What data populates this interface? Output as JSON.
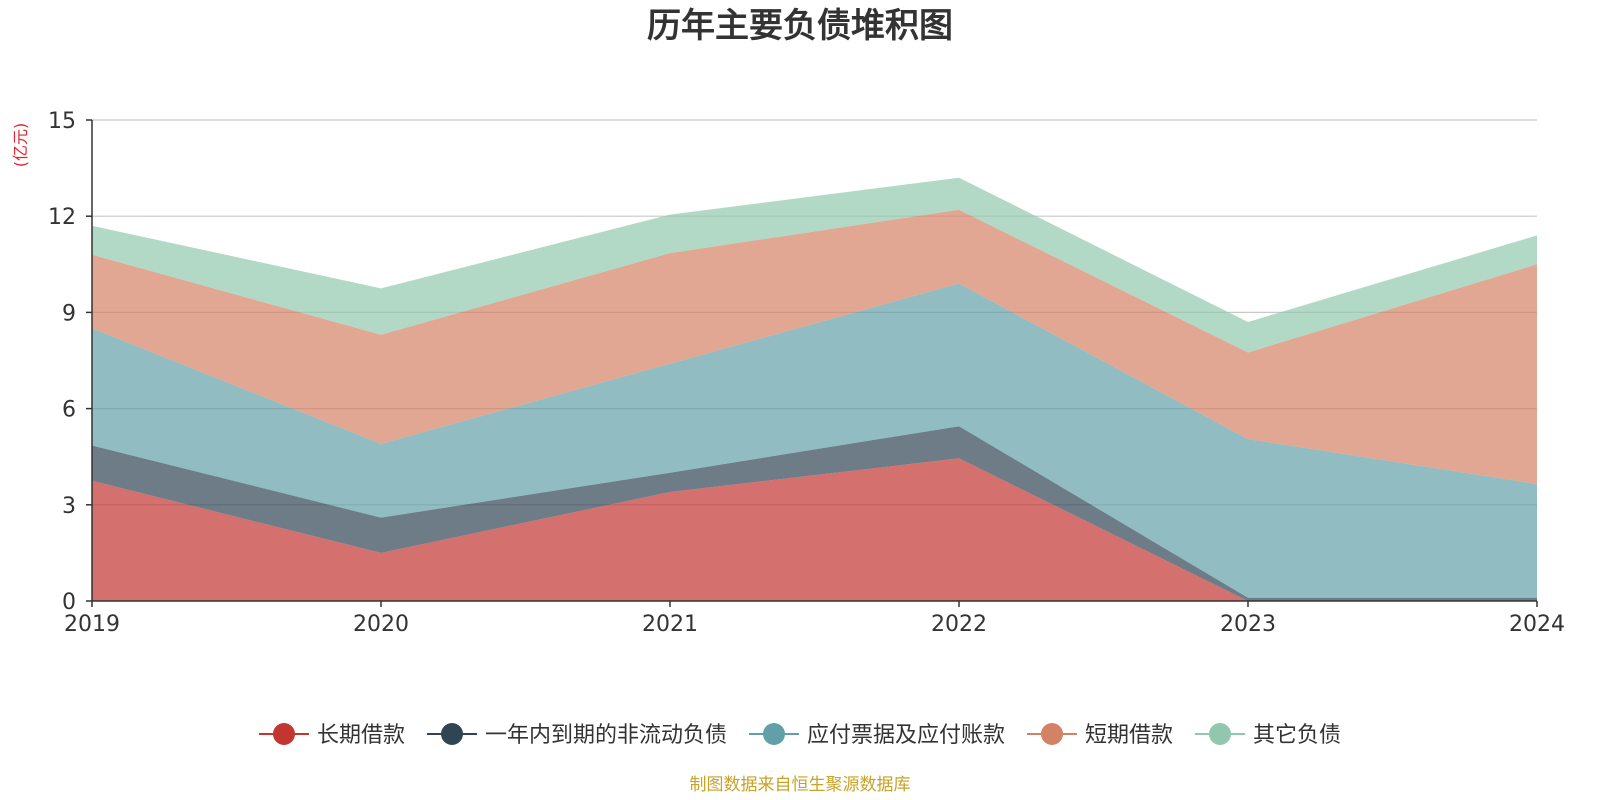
{
  "chart_data": {
    "type": "area",
    "stacked": true,
    "title": "历年主要负债堆积图",
    "y_unit": "(亿元)",
    "x": [
      "2019",
      "2020",
      "2021",
      "2022",
      "2023",
      "2024"
    ],
    "ylim": [
      0,
      15
    ],
    "yticks": [
      0,
      3,
      6,
      9,
      12,
      15
    ],
    "grid": true,
    "legend_position": "bottom",
    "series": [
      {
        "name": "长期借款",
        "color": "#c23531",
        "values": [
          3.75,
          1.5,
          3.4,
          4.45,
          0.0,
          0.0
        ]
      },
      {
        "name": "一年内到期的非流动负债",
        "color": "#2f4554",
        "values": [
          1.1,
          1.1,
          0.6,
          1.0,
          0.1,
          0.1
        ]
      },
      {
        "name": "应付票据及应付账款",
        "color": "#61a0a8",
        "values": [
          3.65,
          2.3,
          3.4,
          4.45,
          4.95,
          3.55
        ]
      },
      {
        "name": "短期借款",
        "color": "#d48265",
        "values": [
          2.3,
          3.4,
          3.45,
          2.3,
          2.7,
          6.85
        ]
      },
      {
        "name": "其它负债",
        "color": "#91c7ae",
        "values": [
          0.9,
          1.45,
          1.2,
          1.0,
          0.95,
          0.9
        ]
      }
    ],
    "source": "制图数据来自恒生聚源数据库"
  }
}
